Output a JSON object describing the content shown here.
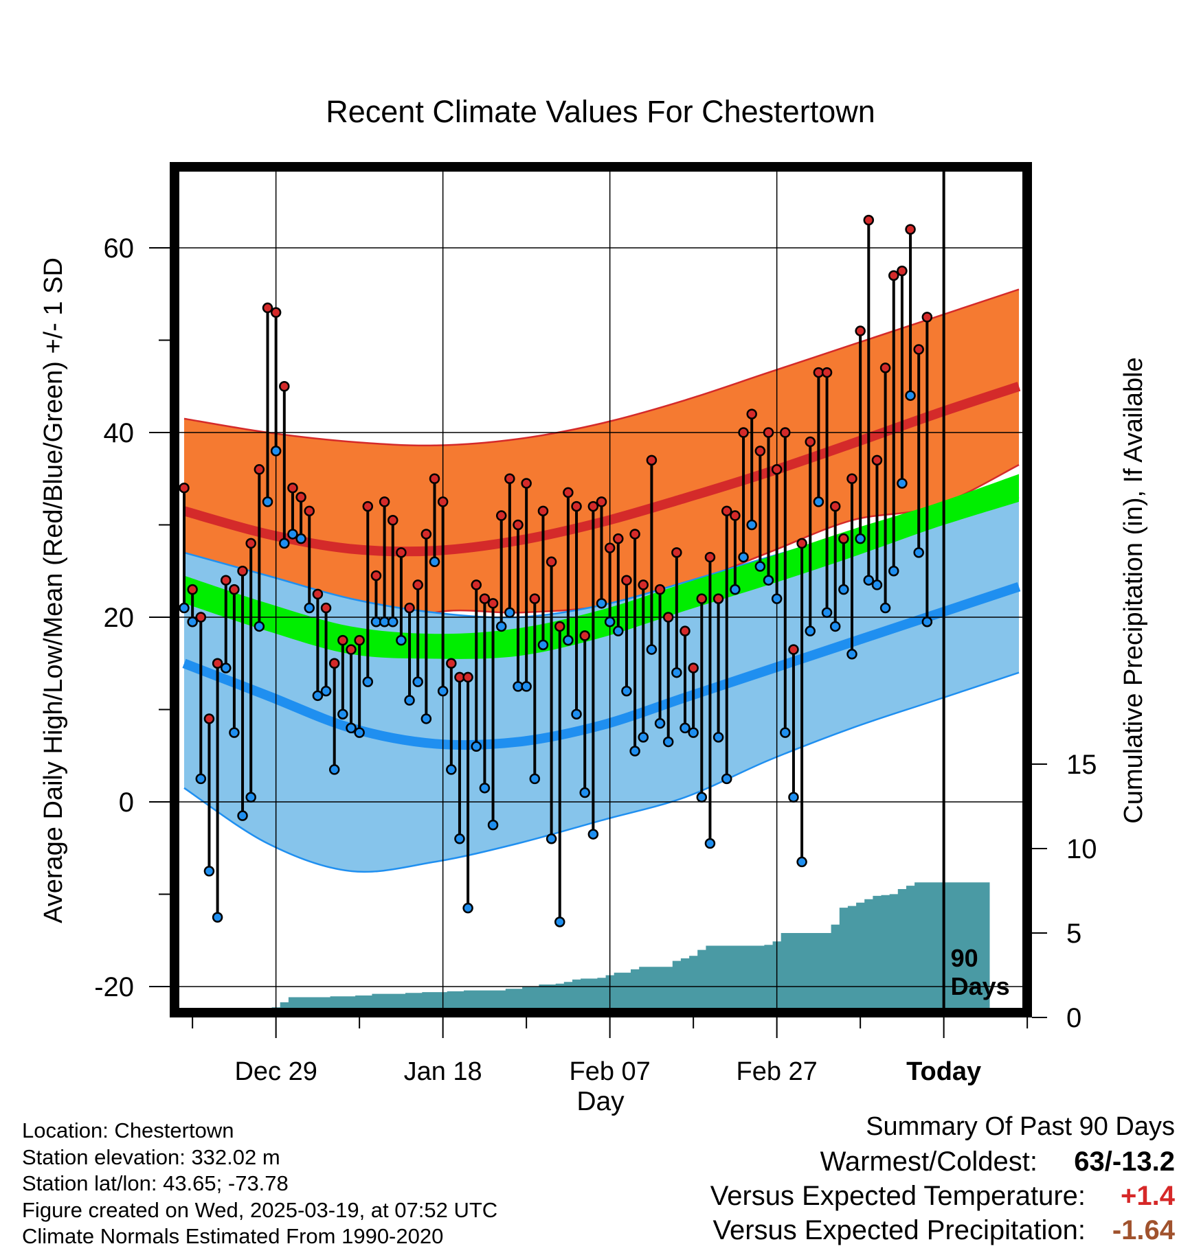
{
  "chart_data": {
    "type": "line",
    "title": "Recent Climate Values For Chestertown",
    "xlabel": "Day",
    "ylabel": "Average Daily High/Low/Mean (Red/Blue/Green) +/- 1 SD",
    "y2label": "Cumulative Precipitation (in), If Available",
    "ylim": [
      -23,
      68
    ],
    "y2lim": [
      0,
      31
    ],
    "yticks": [
      "-20",
      "0",
      "20",
      "40",
      "60"
    ],
    "y2ticks": [
      "0",
      "5",
      "10",
      "15"
    ],
    "xticks": [
      "Dec 29",
      "Jan 18",
      "Feb 07",
      "Feb 27",
      "Today"
    ],
    "today_marker": [
      "90",
      "Days"
    ],
    "grid": true,
    "x_start": "Dec 18",
    "colors": {
      "high_band": "#f57a31",
      "high_line": "#d42a2a",
      "low_band": "#86c4eb",
      "low_line": "#1f8ff0",
      "mean_band": "#99131b",
      "mean_line": "#00ee00",
      "precip": "#4a9aa4",
      "high_dot": "#d42a2a",
      "low_dot": "#1f8ff0"
    },
    "normals": {
      "day": [
        0,
        10,
        20,
        30,
        40,
        50,
        60,
        70,
        80,
        90,
        100
      ],
      "high_mean": [
        31.5,
        29.0,
        27.4,
        27.2,
        28.3,
        30.3,
        32.9,
        35.7,
        38.8,
        42.0,
        45.0
      ],
      "high_upper": [
        41.5,
        40.0,
        39.0,
        38.6,
        39.3,
        41.0,
        43.5,
        46.5,
        49.5,
        52.5,
        55.5
      ],
      "high_lower": [
        20.0,
        18.0,
        17.0,
        20.5,
        20.5,
        21.2,
        23.5,
        27.0,
        30.5,
        32.0,
        36.5
      ],
      "low_mean": [
        15.0,
        11.5,
        8.0,
        6.3,
        6.5,
        8.3,
        11.3,
        14.3,
        17.3,
        20.3,
        23.3
      ],
      "low_upper": [
        27.0,
        24.5,
        22.0,
        20.5,
        20.0,
        21.3,
        23.8,
        26.5,
        29.0,
        30.5,
        33.0
      ],
      "low_lower": [
        1.5,
        -4.5,
        -7.5,
        -6.5,
        -4.5,
        -2.0,
        0.5,
        4.5,
        8.0,
        11.0,
        14.0
      ],
      "mean_mean": [
        23.0,
        20.0,
        17.5,
        16.8,
        17.3,
        19.3,
        22.2,
        25.0,
        28.0,
        31.0,
        34.0
      ],
      "mean_upper": [
        24.5,
        21.5,
        19.0,
        18.2,
        18.8,
        20.8,
        23.7,
        26.5,
        29.5,
        32.3,
        35.5
      ],
      "mean_lower": [
        21.5,
        18.5,
        16.0,
        15.5,
        15.8,
        17.8,
        20.7,
        23.5,
        26.5,
        29.7,
        32.5
      ]
    },
    "series": [
      {
        "name": "High",
        "values": [
          34,
          23,
          20,
          9,
          15,
          24,
          23,
          25,
          28,
          36,
          53.5,
          53,
          45,
          34,
          33,
          31.5,
          22.5,
          21,
          15,
          17.5,
          16.5,
          17.5,
          32,
          24.5,
          32.5,
          30.5,
          27,
          21,
          23.5,
          29,
          35,
          32.5,
          15,
          13.5,
          13.5,
          23.5,
          22,
          21.5,
          31,
          35,
          30,
          34.5,
          22,
          31.5,
          26,
          19,
          33.5,
          32,
          18,
          32,
          32.5,
          27.5,
          28.5,
          24,
          29,
          23.5,
          37,
          23,
          20,
          27,
          18.5,
          14.5,
          22,
          26.5,
          22,
          31.5,
          31,
          40,
          42,
          38,
          40,
          36,
          40,
          16.5,
          28,
          39,
          46.5,
          46.5,
          32,
          28.5,
          35,
          51,
          63,
          37,
          47,
          57,
          57.5,
          62,
          49,
          52.5
        ]
      },
      {
        "name": "Low",
        "values": [
          21,
          19.5,
          2.5,
          -7.5,
          -12.5,
          14.5,
          7.5,
          -1.5,
          0.5,
          19,
          32.5,
          38,
          28,
          29,
          28.5,
          21,
          11.5,
          12,
          3.5,
          9.5,
          8,
          7.5,
          13,
          19.5,
          19.5,
          19.5,
          17.5,
          11,
          13,
          9,
          26,
          12,
          3.5,
          -4,
          -11.5,
          6,
          1.5,
          -2.5,
          19,
          20.5,
          12.5,
          12.5,
          2.5,
          17,
          -4,
          -13,
          17.5,
          9.5,
          1,
          -3.5,
          21.5,
          19.5,
          18.5,
          12,
          5.5,
          7,
          16.5,
          8.5,
          6.5,
          14,
          8,
          7.5,
          0.5,
          -4.5,
          7,
          2.5,
          23,
          26.5,
          30,
          25.5,
          24,
          22,
          7.5,
          0.5,
          -6.5,
          18.5,
          32.5,
          20.5,
          19,
          23,
          16,
          28.5,
          24,
          23.5,
          21,
          25,
          34.5,
          44,
          27,
          19.5
        ]
      }
    ],
    "precip": [
      0,
      0,
      0,
      0,
      0,
      0,
      0,
      0,
      0,
      0,
      0.3,
      0.6,
      0.9,
      1.2,
      1.2,
      1.2,
      1.2,
      1.2,
      1.25,
      1.25,
      1.25,
      1.3,
      1.3,
      1.4,
      1.4,
      1.4,
      1.4,
      1.45,
      1.45,
      1.5,
      1.5,
      1.5,
      1.55,
      1.55,
      1.6,
      1.6,
      1.6,
      1.6,
      1.6,
      1.7,
      1.7,
      1.8,
      1.8,
      1.95,
      1.95,
      2.0,
      2.1,
      2.25,
      2.3,
      2.3,
      2.35,
      2.5,
      2.65,
      2.65,
      2.85,
      3.0,
      3.0,
      3.0,
      3.0,
      3.35,
      3.5,
      3.65,
      4.0,
      4.25,
      4.25,
      4.25,
      4.25,
      4.25,
      4.25,
      4.25,
      4.3,
      4.5,
      5.0,
      5.0,
      5.0,
      5.0,
      5.0,
      5.0,
      5.5,
      6.5,
      6.6,
      6.8,
      7.0,
      7.2,
      7.25,
      7.3,
      7.6,
      7.8,
      8.0,
      8.0,
      8.0,
      8.0,
      8.0,
      8.0,
      8.0,
      8.0,
      8.0
    ]
  },
  "info": {
    "location": "Location: Chestertown",
    "elevation": "Station elevation: 332.02 m",
    "latlon": "Station lat/lon: 43.65; -73.78",
    "created": "Figure created on Wed, 2025-03-19, at 07:52 UTC",
    "normals": "Climate Normals Estimated From 1990-2020"
  },
  "summary": {
    "heading": "Summary Of Past 90 Days",
    "warmest_label": "Warmest/Coldest:",
    "warmest_value": "63/-13.2",
    "temp_label": "Versus Expected Temperature:",
    "temp_value": "+1.4",
    "temp_color": "#d62828",
    "precip_label": "Versus Expected Precipitation:",
    "precip_value": "-1.64",
    "precip_color": "#a0522d"
  }
}
